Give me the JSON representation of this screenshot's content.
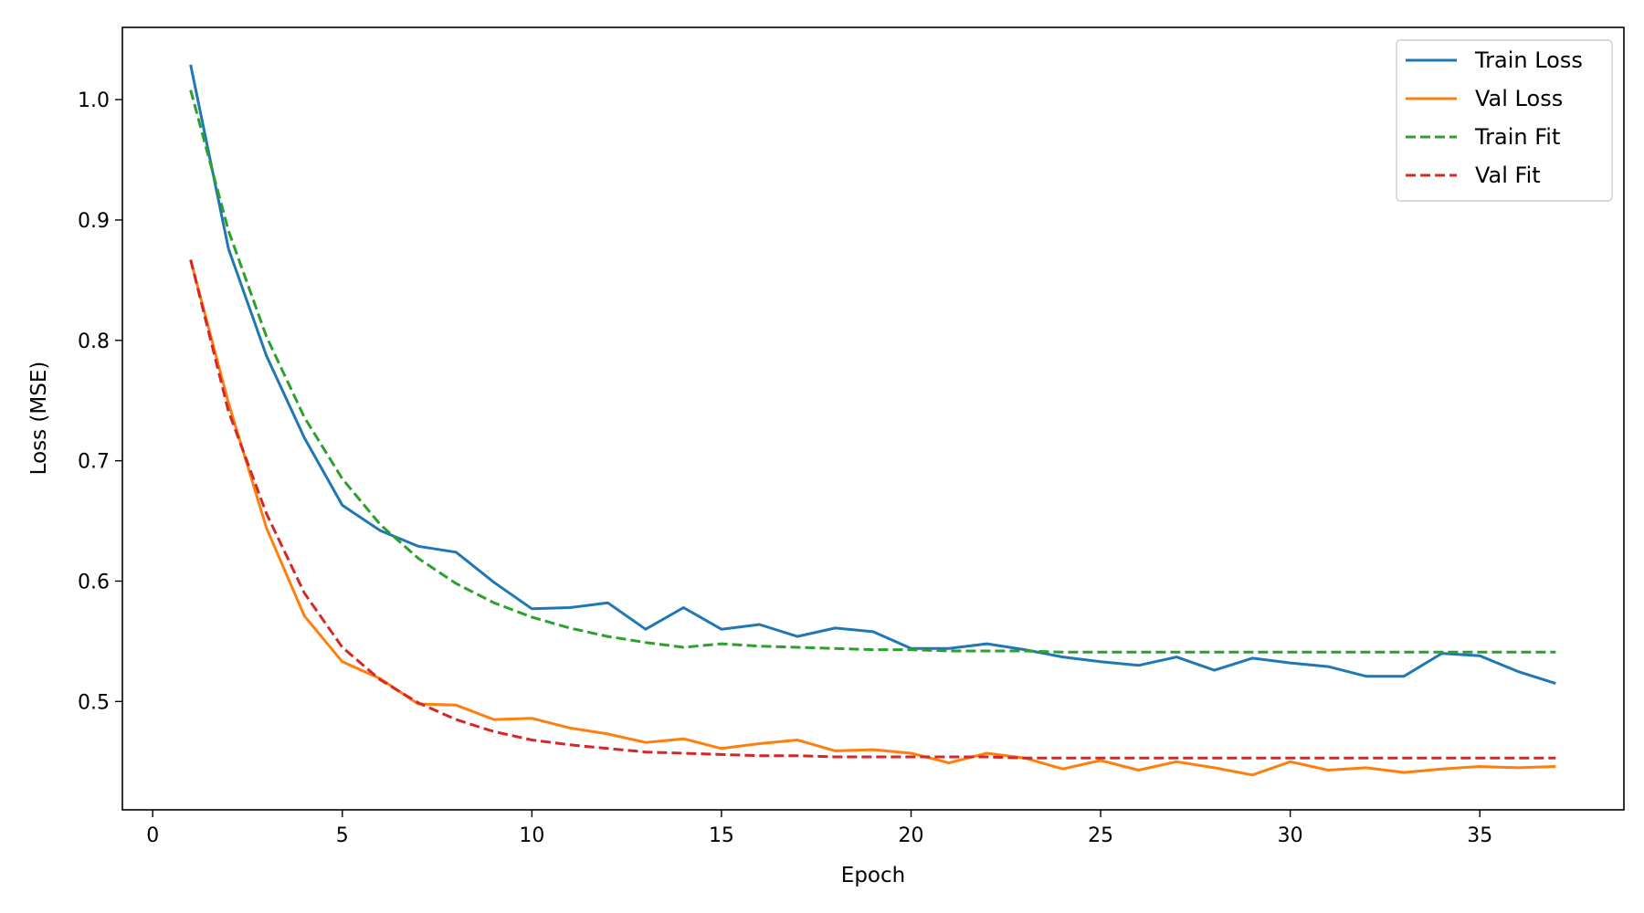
{
  "chart_data": {
    "type": "line",
    "title": "",
    "xlabel": "Epoch",
    "ylabel": "Loss (MSE)",
    "xlim": [
      -0.8,
      38.8
    ],
    "ylim": [
      0.41,
      1.06
    ],
    "xticks": [
      0,
      5,
      10,
      15,
      20,
      25,
      30,
      35
    ],
    "yticks": [
      0.5,
      0.6,
      0.7,
      0.8,
      0.9,
      1.0
    ],
    "ytick_labels": [
      "0.5",
      "0.6",
      "0.7",
      "0.8",
      "0.9",
      "1.0"
    ],
    "grid": false,
    "legend_position": "top-right",
    "x": [
      1,
      2,
      3,
      4,
      5,
      6,
      7,
      8,
      9,
      10,
      11,
      12,
      13,
      14,
      15,
      16,
      17,
      18,
      19,
      20,
      21,
      22,
      23,
      24,
      25,
      26,
      27,
      28,
      29,
      30,
      31,
      32,
      33,
      34,
      35,
      36,
      37
    ],
    "series": [
      {
        "name": "Train Loss",
        "color": "#1f77b4",
        "style": "solid",
        "values": [
          1.029,
          0.876,
          0.787,
          0.719,
          0.663,
          0.642,
          0.629,
          0.624,
          0.599,
          0.577,
          0.578,
          0.582,
          0.56,
          0.578,
          0.56,
          0.564,
          0.554,
          0.561,
          0.558,
          0.544,
          0.544,
          0.548,
          0.543,
          0.537,
          0.533,
          0.53,
          0.537,
          0.526,
          0.536,
          0.532,
          0.529,
          0.521,
          0.521,
          0.54,
          0.538,
          0.525,
          0.515
        ]
      },
      {
        "name": "Val Loss",
        "color": "#ff7f0e",
        "style": "solid",
        "values": [
          0.867,
          0.748,
          0.644,
          0.571,
          0.533,
          0.519,
          0.498,
          0.497,
          0.485,
          0.486,
          0.478,
          0.473,
          0.466,
          0.469,
          0.461,
          0.465,
          0.468,
          0.459,
          0.46,
          0.457,
          0.449,
          0.457,
          0.453,
          0.444,
          0.451,
          0.443,
          0.45,
          0.445,
          0.439,
          0.45,
          0.443,
          0.445,
          0.441,
          0.444,
          0.446,
          0.445,
          0.446
        ]
      },
      {
        "name": "Train Fit",
        "color": "#2ca02c",
        "style": "dashed",
        "values": [
          1.008,
          0.891,
          0.803,
          0.736,
          0.685,
          0.647,
          0.619,
          0.598,
          0.582,
          0.57,
          0.561,
          0.554,
          0.549,
          0.545,
          0.548,
          0.546,
          0.545,
          0.544,
          0.543,
          0.543,
          0.542,
          0.542,
          0.542,
          0.541,
          0.541,
          0.541,
          0.541,
          0.541,
          0.541,
          0.541,
          0.541,
          0.541,
          0.541,
          0.541,
          0.541,
          0.541,
          0.541
        ]
      },
      {
        "name": "Val Fit",
        "color": "#d62728",
        "style": "dashed",
        "values": [
          0.867,
          0.741,
          0.656,
          0.59,
          0.545,
          0.518,
          0.499,
          0.485,
          0.475,
          0.468,
          0.464,
          0.461,
          0.458,
          0.457,
          0.456,
          0.455,
          0.455,
          0.454,
          0.454,
          0.454,
          0.454,
          0.454,
          0.453,
          0.453,
          0.453,
          0.453,
          0.453,
          0.453,
          0.453,
          0.453,
          0.453,
          0.453,
          0.453,
          0.453,
          0.453,
          0.453,
          0.453
        ]
      }
    ]
  }
}
